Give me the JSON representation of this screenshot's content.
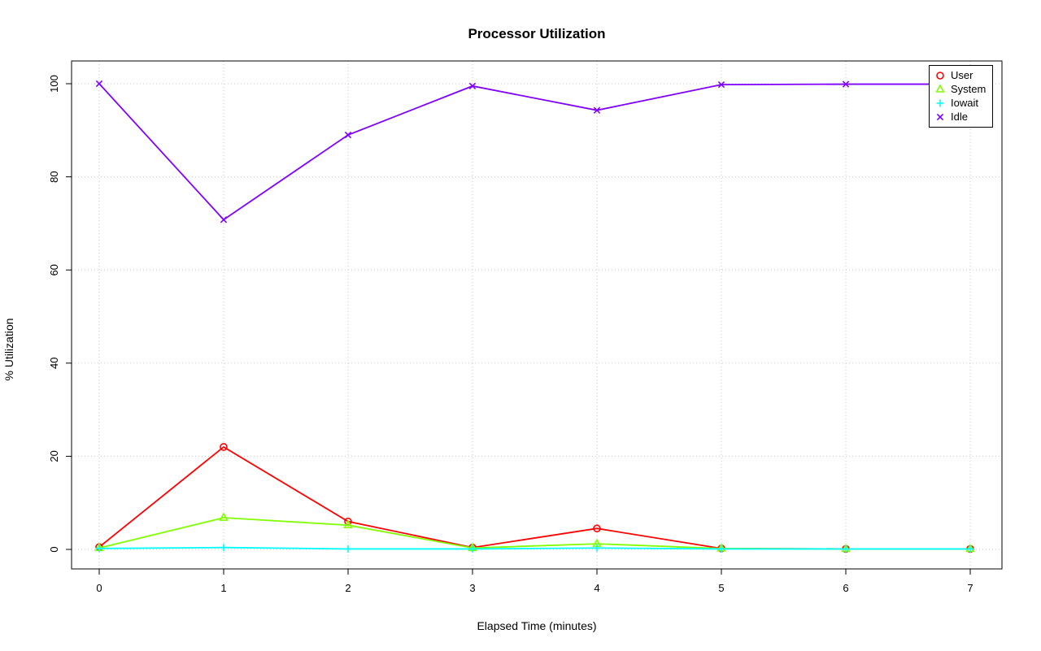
{
  "chart_data": {
    "type": "line",
    "title": "Processor Utilization",
    "xlabel": "Elapsed Time (minutes)",
    "ylabel": "% Utilization",
    "x": [
      0,
      1,
      2,
      3,
      4,
      5,
      6,
      7
    ],
    "xticks": [
      0,
      1,
      2,
      3,
      4,
      5,
      6,
      7
    ],
    "yticks": [
      0,
      20,
      40,
      60,
      80,
      100
    ],
    "xlim": [
      0,
      7
    ],
    "ylim": [
      0,
      100
    ],
    "grid": "dotted",
    "legend_position": "top-right",
    "series": [
      {
        "name": "User",
        "color": "#FF0000",
        "marker": "circle",
        "values": [
          0.5,
          22.0,
          6.0,
          0.4,
          4.5,
          0.2,
          0.1,
          0.1
        ]
      },
      {
        "name": "System",
        "color": "#80FF00",
        "marker": "triangle",
        "values": [
          0.3,
          6.8,
          5.2,
          0.3,
          1.2,
          0.2,
          0.1,
          0.1
        ]
      },
      {
        "name": "Iowait",
        "color": "#00FFFF",
        "marker": "plus",
        "values": [
          0.2,
          0.4,
          0.1,
          0.1,
          0.3,
          0.1,
          0.1,
          0.1
        ]
      },
      {
        "name": "Idle",
        "color": "#8000FF",
        "marker": "x",
        "values": [
          100.0,
          70.8,
          89.0,
          99.5,
          94.3,
          99.8,
          99.9,
          99.9
        ]
      }
    ]
  }
}
